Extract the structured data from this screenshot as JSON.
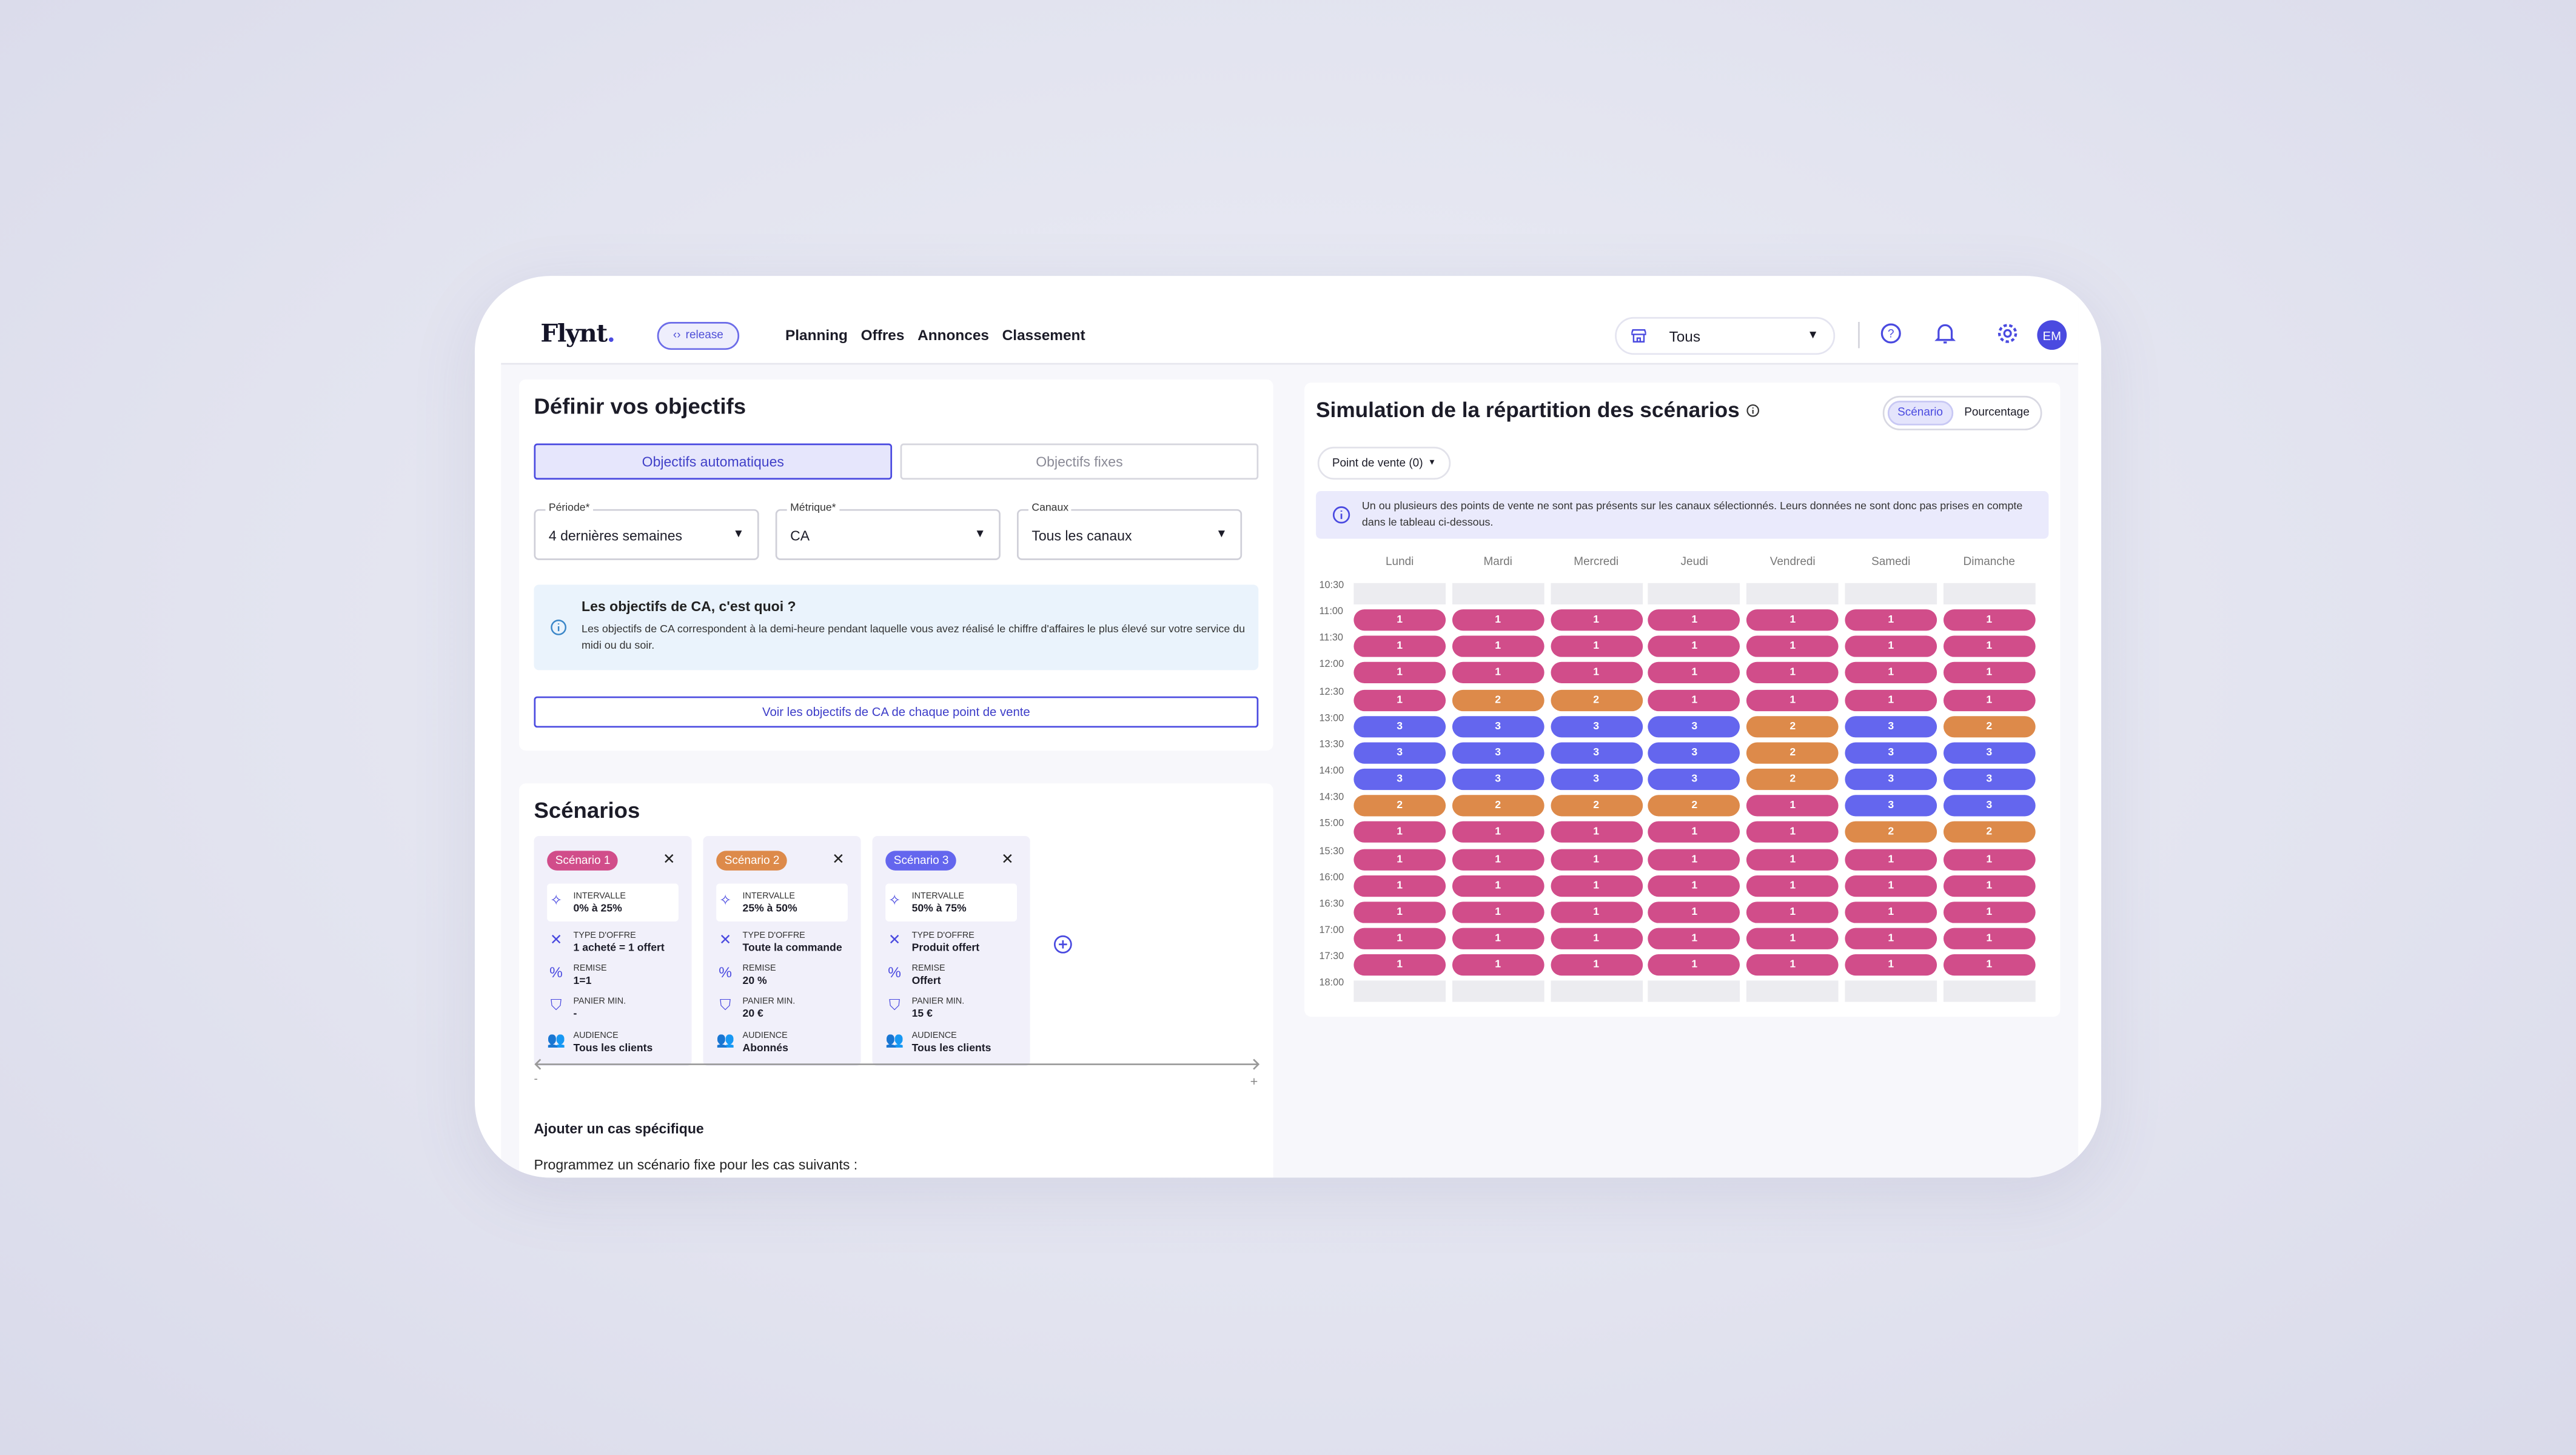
{
  "header": {
    "logo": "Flynt",
    "release": "release",
    "nav": [
      "Planning",
      "Offres",
      "Annonces",
      "Classement"
    ],
    "store_select": "Tous",
    "avatar": "EM",
    "icons": [
      "store-icon",
      "help-icon",
      "bell-icon",
      "gear-icon"
    ]
  },
  "objectives": {
    "title": "Définir vos objectifs",
    "tabs": [
      "Objectifs automatiques",
      "Objectifs fixes"
    ],
    "active_tab": "Objectifs automatiques",
    "selects": [
      {
        "label": "Période*",
        "value": "4 dernières semaines"
      },
      {
        "label": "Métrique*",
        "value": "CA"
      },
      {
        "label": "Canaux",
        "value": "Tous les canaux"
      }
    ],
    "info_title": "Les objectifs de CA, c'est quoi ?",
    "info_text": "Les objectifs de CA correspondent à la demi-heure pendant laquelle vous avez réalisé le chiffre d'affaires le plus élevé sur votre service du midi ou du soir.",
    "view_button": "Voir les objectifs de CA de chaque point de vente"
  },
  "scenarios": {
    "title": "Scénarios",
    "labels": {
      "interval": "INTERVALLE",
      "offer": "TYPE D'OFFRE",
      "discount": "REMISE",
      "min_basket": "PANIER MIN.",
      "audience": "AUDIENCE"
    },
    "items": [
      {
        "name": "Scénario 1",
        "color": "#d14d8a",
        "interval": "0% à 25%",
        "offer": "1 acheté = 1 offert",
        "discount": "1=1",
        "min_basket": "-",
        "audience": "Tous les clients"
      },
      {
        "name": "Scénario 2",
        "color": "#dd8a4a",
        "interval": "25% à 50%",
        "offer": "Toute la commande",
        "discount": "20 %",
        "min_basket": "20 €",
        "audience": "Abonnés"
      },
      {
        "name": "Scénario 3",
        "color": "#6466ee",
        "interval": "50% à 75%",
        "offer": "Produit offert",
        "discount": "Offert",
        "min_basket": "15 €",
        "audience": "Tous les clients"
      }
    ],
    "scale_min": "-",
    "scale_max": "+",
    "specific_title": "Ajouter un cas spécifique",
    "specific_text": "Programmez un scénario fixe pour les cas suivants :"
  },
  "simulation": {
    "title": "Simulation de la répartition des scénarios",
    "toggle": [
      "Scénario",
      "Pourcentage"
    ],
    "toggle_active": "Scénario",
    "point_de_vente": "Point de vente (0)",
    "warning": "Un ou plusieurs des points de vente ne sont pas présents sur les canaux sélectionnés. Leurs données ne sont donc pas prises en compte dans le tableau ci-dessous.",
    "days": [
      "Lundi",
      "Mardi",
      "Mercredi",
      "Jeudi",
      "Vendredi",
      "Samedi",
      "Dimanche"
    ],
    "colors": {
      "1": "#d14d8a",
      "2": "#dd8a4a",
      "3": "#6466ee"
    },
    "rows": [
      {
        "time": "10:30",
        "values": [
          null,
          null,
          null,
          null,
          null,
          null,
          null
        ]
      },
      {
        "time": "11:00",
        "values": [
          1,
          1,
          1,
          1,
          1,
          1,
          1
        ]
      },
      {
        "time": "11:30",
        "values": [
          1,
          1,
          1,
          1,
          1,
          1,
          1
        ]
      },
      {
        "time": "12:00",
        "values": [
          1,
          1,
          1,
          1,
          1,
          1,
          1
        ]
      },
      {
        "time": "12:30",
        "values": [
          1,
          2,
          2,
          1,
          1,
          1,
          1
        ]
      },
      {
        "time": "13:00",
        "values": [
          3,
          3,
          3,
          3,
          2,
          3,
          2
        ]
      },
      {
        "time": "13:30",
        "values": [
          3,
          3,
          3,
          3,
          2,
          3,
          3
        ]
      },
      {
        "time": "14:00",
        "values": [
          3,
          3,
          3,
          3,
          2,
          3,
          3
        ]
      },
      {
        "time": "14:30",
        "values": [
          2,
          2,
          2,
          2,
          1,
          3,
          3
        ]
      },
      {
        "time": "15:00",
        "values": [
          1,
          1,
          1,
          1,
          1,
          2,
          2
        ]
      },
      {
        "time": "15:30",
        "values": [
          1,
          1,
          1,
          1,
          1,
          1,
          1
        ]
      },
      {
        "time": "16:00",
        "values": [
          1,
          1,
          1,
          1,
          1,
          1,
          1
        ]
      },
      {
        "time": "16:30",
        "values": [
          1,
          1,
          1,
          1,
          1,
          1,
          1
        ]
      },
      {
        "time": "17:00",
        "values": [
          1,
          1,
          1,
          1,
          1,
          1,
          1
        ]
      },
      {
        "time": "17:30",
        "values": [
          1,
          1,
          1,
          1,
          1,
          1,
          1
        ]
      },
      {
        "time": "18:00",
        "values": [
          null,
          null,
          null,
          null,
          null,
          null,
          null
        ]
      }
    ]
  }
}
